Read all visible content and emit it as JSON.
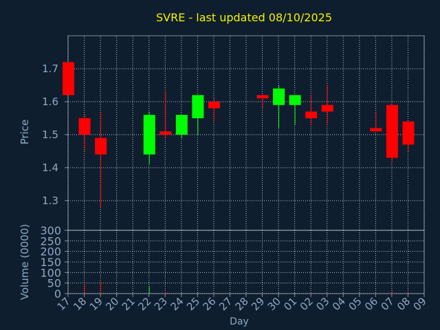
{
  "chart_data": {
    "title": "SVRE - last updated 08/10/2025",
    "xlabel": "Day",
    "colors": {
      "background": "#0f1e2e",
      "up": "#00ff00",
      "down": "#ff0000",
      "title": "#f2f200",
      "text": "#8fa8c4",
      "grid": "#ffffff"
    },
    "x_ticks": [
      "17",
      "18",
      "19",
      "20",
      "21",
      "22",
      "23",
      "24",
      "25",
      "26",
      "27",
      "28",
      "29",
      "30",
      "01",
      "02",
      "03",
      "04",
      "05",
      "06",
      "07",
      "08",
      "09"
    ],
    "price_panel": {
      "type": "candlestick",
      "ylabel": "Price",
      "ylim": [
        1.21,
        1.8
      ],
      "y_ticks": [
        1.3,
        1.4,
        1.5,
        1.6,
        1.7
      ],
      "y_tick_labels": [
        "1.3",
        "1.4",
        "1.5",
        "1.6",
        "1.7"
      ],
      "grid": true,
      "candles": [
        {
          "day": "17",
          "open": 1.72,
          "high": 1.72,
          "low": 1.62,
          "close": 1.62
        },
        {
          "day": "18",
          "open": 1.55,
          "high": 1.56,
          "low": 1.45,
          "close": 1.5
        },
        {
          "day": "19",
          "open": 1.49,
          "high": 1.57,
          "low": 1.28,
          "close": 1.44
        },
        {
          "day": "22",
          "open": 1.44,
          "high": 1.57,
          "low": 1.41,
          "close": 1.56
        },
        {
          "day": "23",
          "open": 1.51,
          "high": 1.63,
          "low": 1.49,
          "close": 1.5
        },
        {
          "day": "24",
          "open": 1.5,
          "high": 1.56,
          "low": 1.49,
          "close": 1.56
        },
        {
          "day": "25",
          "open": 1.55,
          "high": 1.62,
          "low": 1.5,
          "close": 1.62
        },
        {
          "day": "26",
          "open": 1.6,
          "high": 1.61,
          "low": 1.54,
          "close": 1.58
        },
        {
          "day": "29",
          "open": 1.62,
          "high": 1.62,
          "low": 1.58,
          "close": 1.61
        },
        {
          "day": "30",
          "open": 1.59,
          "high": 1.65,
          "low": 1.52,
          "close": 1.64
        },
        {
          "day": "01",
          "open": 1.59,
          "high": 1.62,
          "low": 1.53,
          "close": 1.62
        },
        {
          "day": "02",
          "open": 1.57,
          "high": 1.62,
          "low": 1.53,
          "close": 1.55
        },
        {
          "day": "03",
          "open": 1.59,
          "high": 1.65,
          "low": 1.53,
          "close": 1.57
        },
        {
          "day": "06",
          "open": 1.52,
          "high": 1.57,
          "low": 1.51,
          "close": 1.51
        },
        {
          "day": "07",
          "open": 1.59,
          "high": 1.59,
          "low": 1.42,
          "close": 1.43
        },
        {
          "day": "08",
          "open": 1.54,
          "high": 1.54,
          "low": 1.45,
          "close": 1.47
        }
      ]
    },
    "volume_panel": {
      "type": "bar",
      "ylabel": "Volume (0000)",
      "ylim": [
        0,
        300
      ],
      "y_ticks": [
        0,
        50,
        100,
        150,
        200,
        250,
        300
      ],
      "y_tick_labels": [
        "0",
        "50",
        "100",
        "150",
        "200",
        "250",
        "300"
      ],
      "grid": true,
      "bars": [
        {
          "day": "17",
          "value": 3,
          "color": "red"
        },
        {
          "day": "18",
          "value": 45,
          "color": "red"
        },
        {
          "day": "19",
          "value": 55,
          "color": "red"
        },
        {
          "day": "22",
          "value": 35,
          "color": "green"
        },
        {
          "day": "23",
          "value": 8,
          "color": "red"
        },
        {
          "day": "24",
          "value": 5,
          "color": "green"
        },
        {
          "day": "25",
          "value": 5,
          "color": "green"
        },
        {
          "day": "26",
          "value": 4,
          "color": "red"
        },
        {
          "day": "29",
          "value": 3,
          "color": "red"
        },
        {
          "day": "30",
          "value": 4,
          "color": "green"
        },
        {
          "day": "01",
          "value": 3,
          "color": "green"
        },
        {
          "day": "02",
          "value": 4,
          "color": "red"
        },
        {
          "day": "03",
          "value": 3,
          "color": "red"
        },
        {
          "day": "06",
          "value": 3,
          "color": "red"
        },
        {
          "day": "07",
          "value": 12,
          "color": "red"
        },
        {
          "day": "08",
          "value": 5,
          "color": "red"
        }
      ]
    }
  }
}
